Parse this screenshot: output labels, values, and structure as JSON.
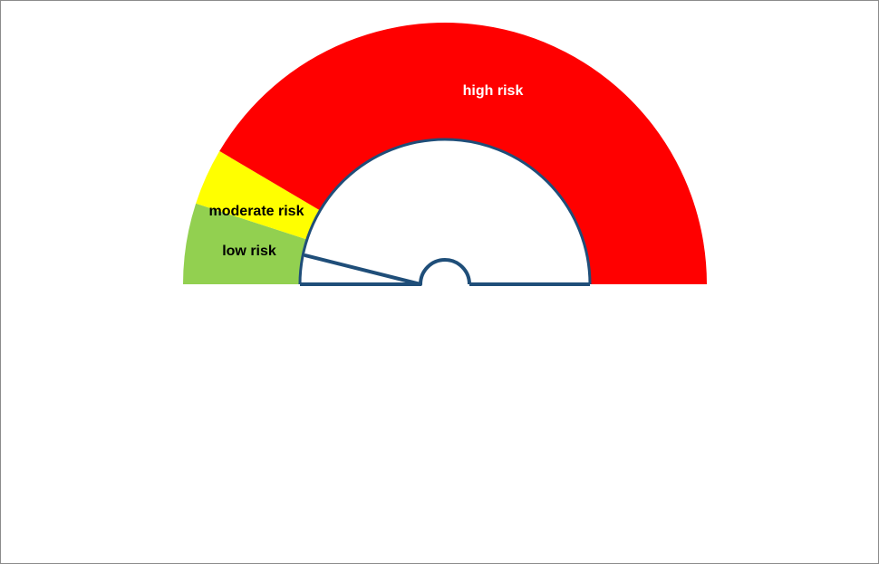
{
  "chart_data": {
    "type": "pie",
    "subtype": "semicircle-gauge",
    "scale": [
      0,
      100
    ],
    "segments": [
      {
        "label": "low risk",
        "value": 10,
        "color": "#92d050",
        "label_color": "#000000"
      },
      {
        "label": "moderate risk",
        "value": 7,
        "color": "#ffff00",
        "label_color": "#000000"
      },
      {
        "label": "high risk",
        "value": 83,
        "color": "#ff0000",
        "label_color": "#ffffff"
      }
    ],
    "needle_value": 6.5,
    "needle_color": "#1f4e79"
  }
}
